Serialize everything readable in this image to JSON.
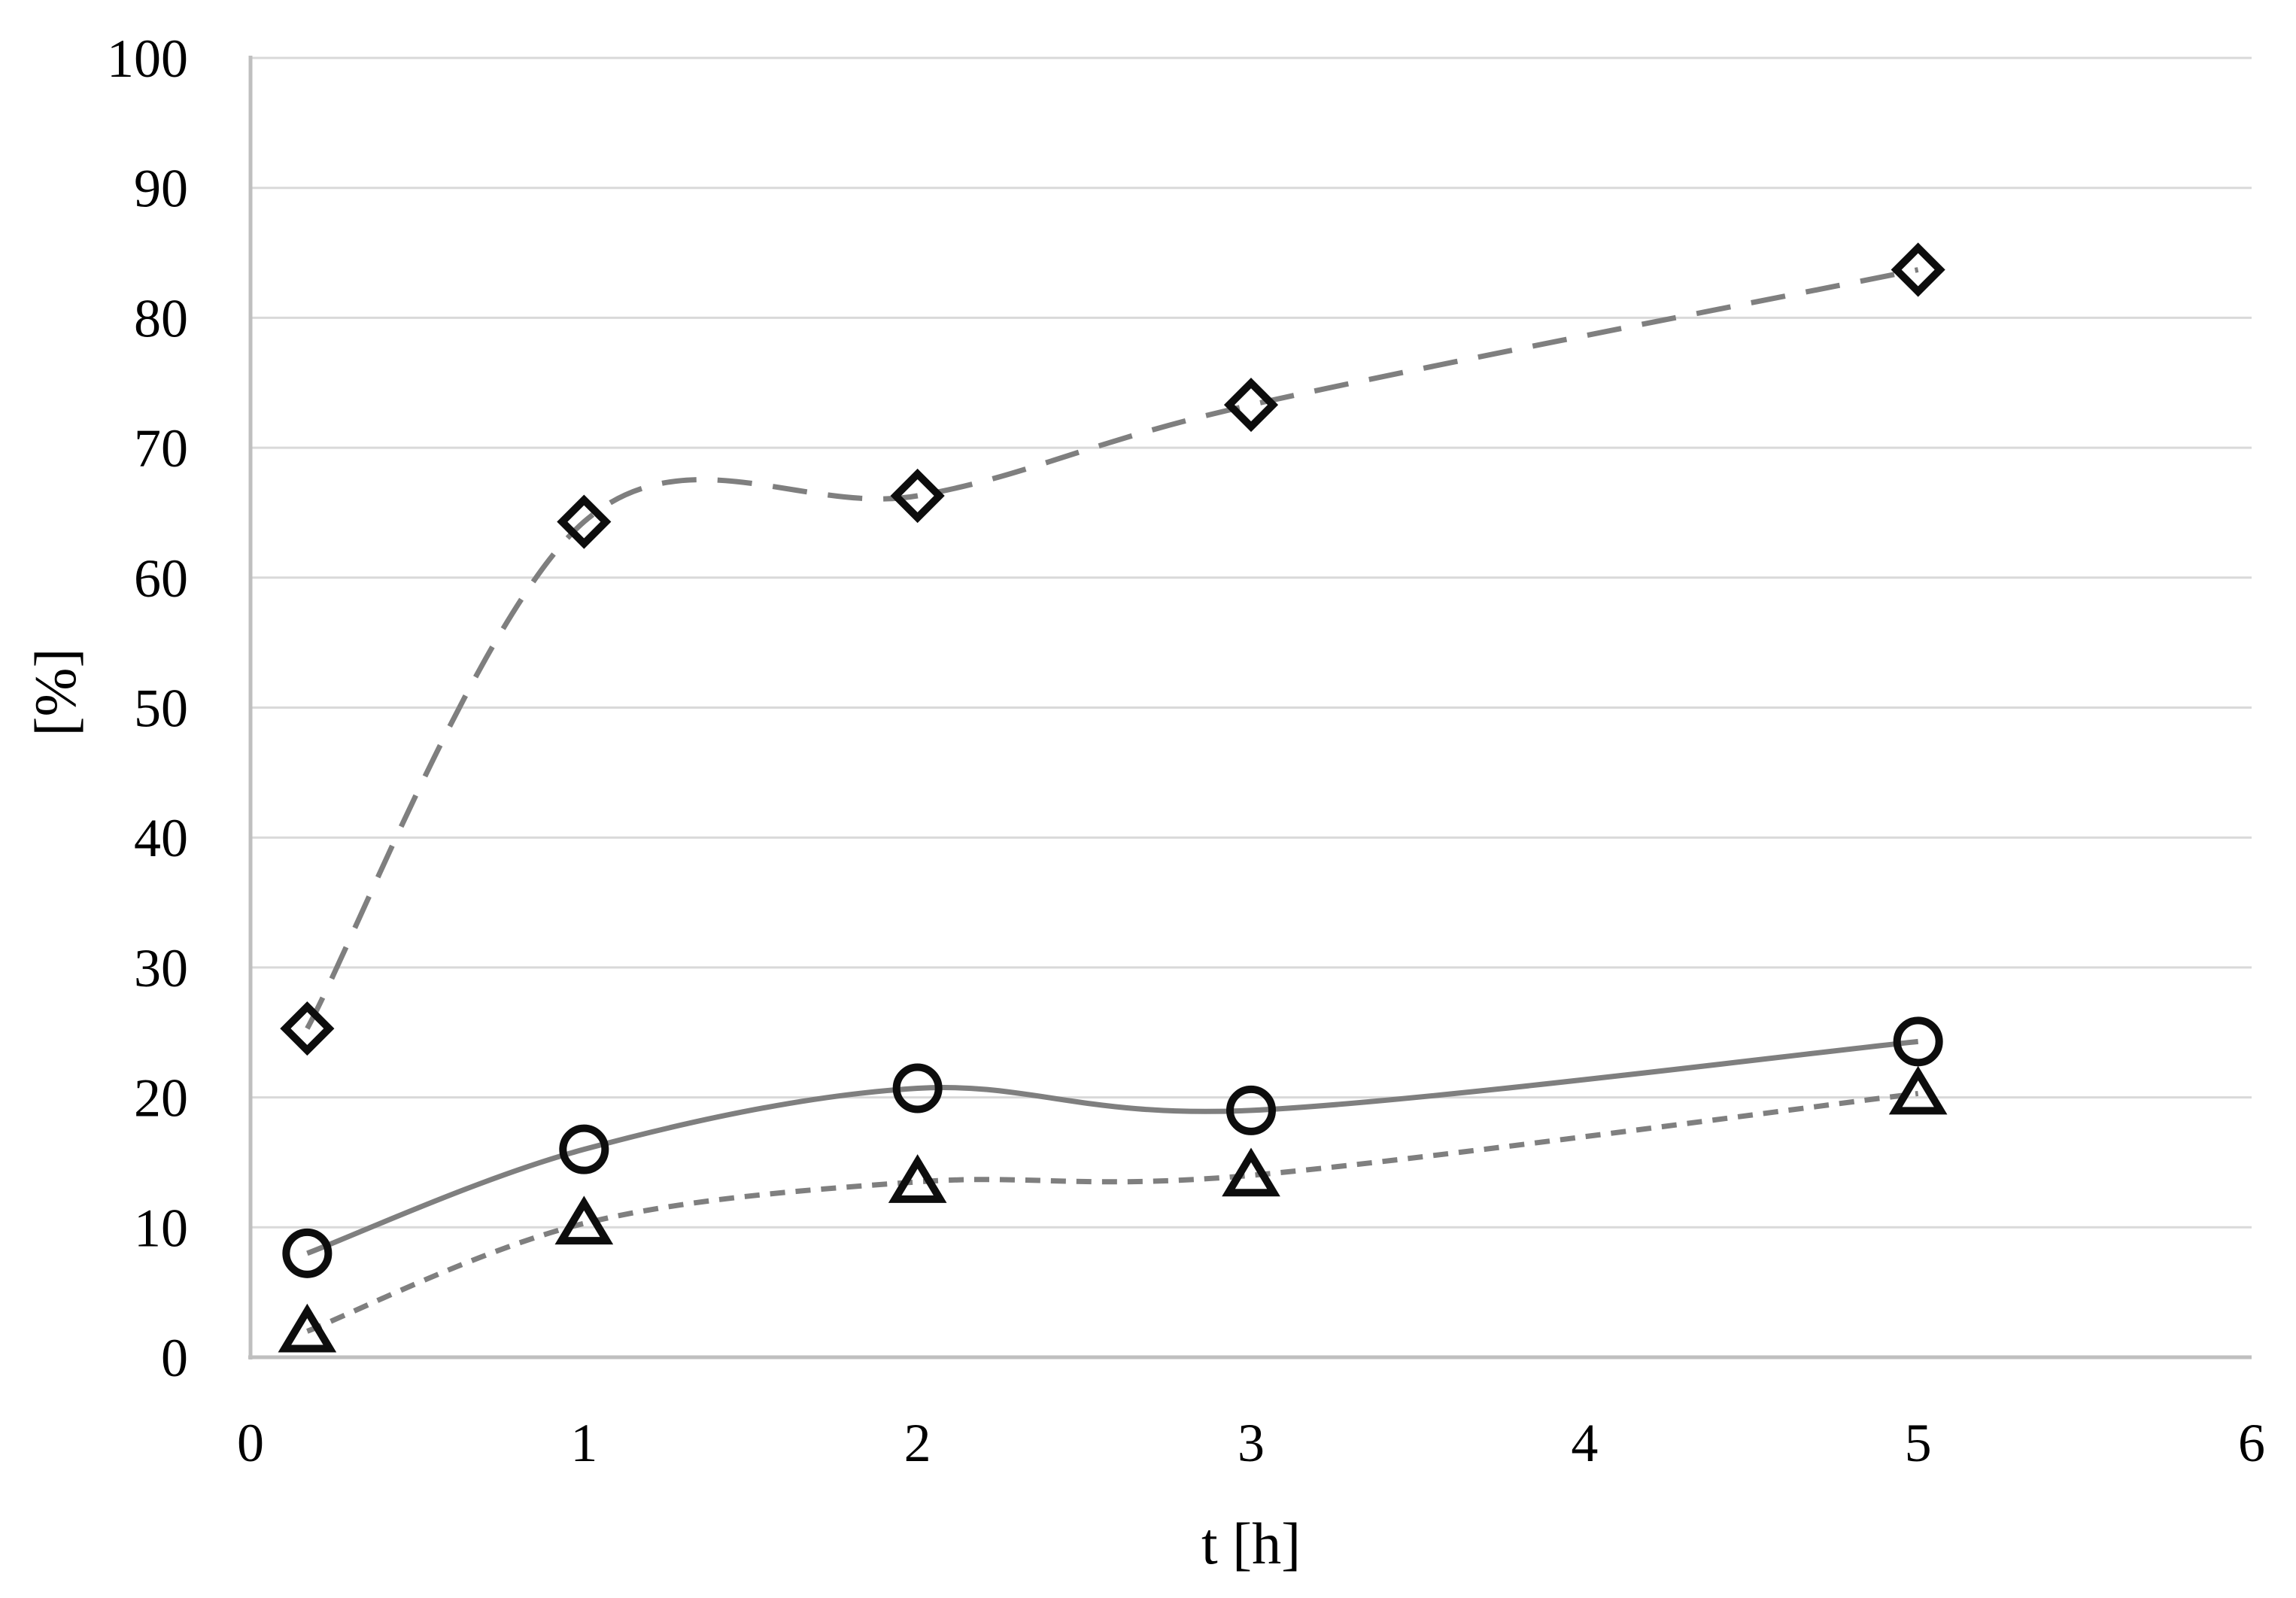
{
  "chart_data": {
    "type": "line",
    "title": "",
    "xlabel": "t [h]",
    "ylabel": "[%]",
    "xlim": [
      0,
      6
    ],
    "ylim": [
      0,
      100
    ],
    "x_ticks": [
      0,
      1,
      2,
      3,
      4,
      5,
      6
    ],
    "y_ticks": [
      0,
      10,
      20,
      30,
      40,
      50,
      60,
      70,
      80,
      90,
      100
    ],
    "grid": "horizontal",
    "legend_position": "none",
    "smoothed_lines": true,
    "x": [
      0.17,
      1,
      2,
      3,
      5
    ],
    "series": [
      {
        "name": "diamond-long-dash",
        "marker": "diamond",
        "line_style": "long-dash",
        "values": [
          25.3,
          64.3,
          66.3,
          73.3,
          83.7
        ]
      },
      {
        "name": "circle-solid",
        "marker": "circle",
        "line_style": "solid",
        "values": [
          8.0,
          16.0,
          20.7,
          19.0,
          24.3
        ]
      },
      {
        "name": "triangle-short-dash",
        "marker": "triangle",
        "line_style": "short-dash",
        "values": [
          2.0,
          10.3,
          13.5,
          14.0,
          20.3
        ]
      }
    ],
    "colors": {
      "line": "#7f7f7f",
      "marker_stroke": "#0d0d0d",
      "marker_fill": "none",
      "gridline": "#d9d9d9",
      "axis_line": "#bfbfbf",
      "text": "#000000",
      "background": "#ffffff"
    }
  }
}
